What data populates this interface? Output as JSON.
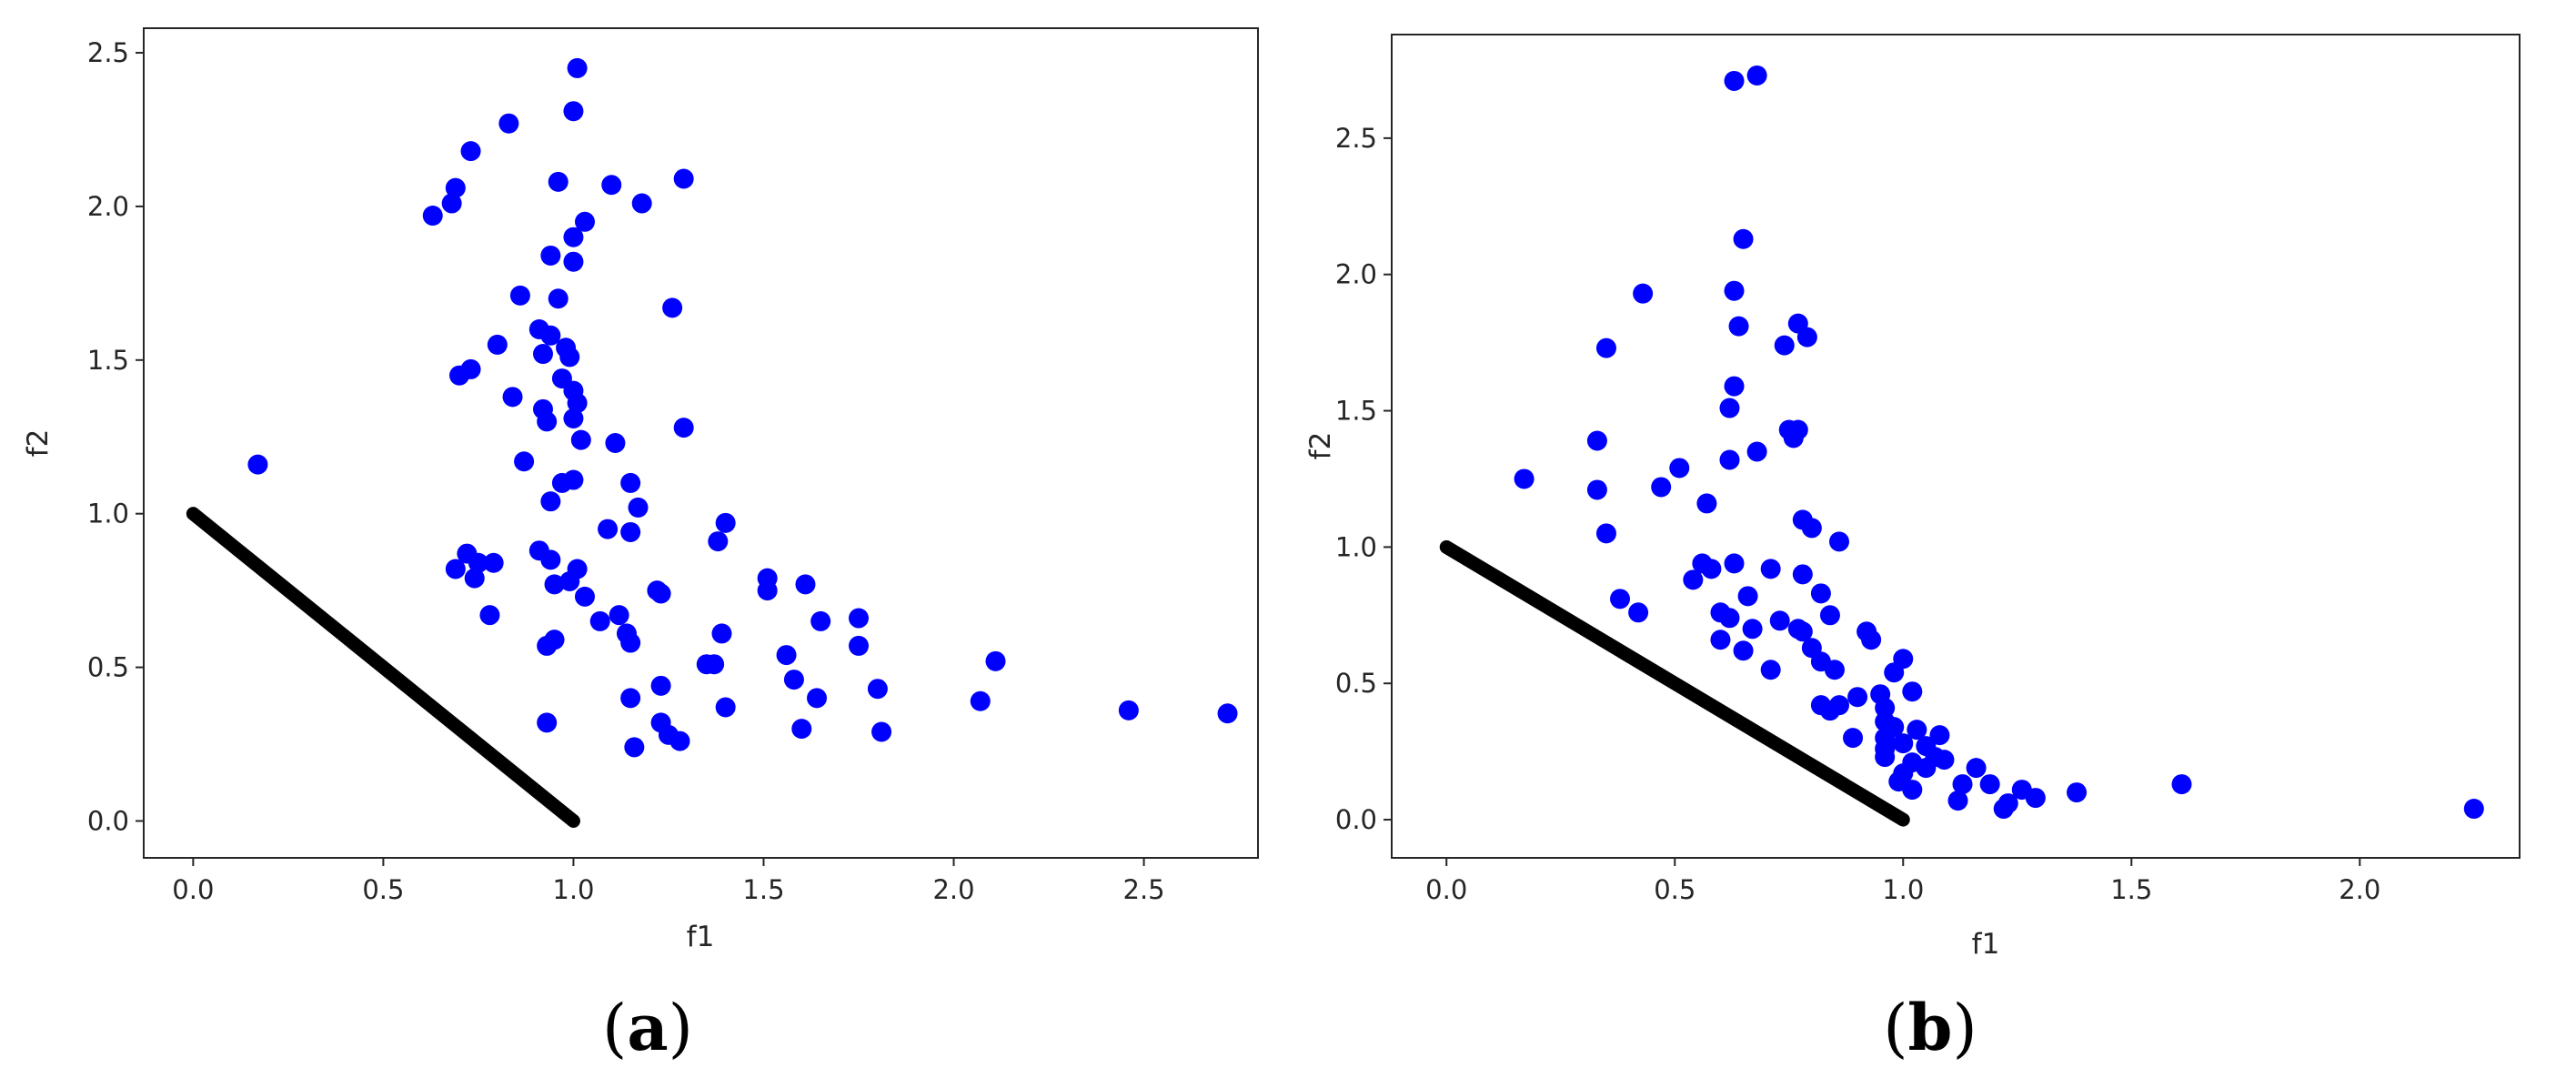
{
  "colors": {
    "points": "#0000ff",
    "line": "#000000",
    "axes": "#262626"
  },
  "chart_data": [
    {
      "type": "scatter",
      "panel_label": {
        "open": "(",
        "letter": "a",
        "close": ")"
      },
      "xlabel": "f1",
      "ylabel": "f2",
      "xlim": [
        -0.13,
        2.8
      ],
      "ylim": [
        -0.12,
        2.58
      ],
      "xticks": [
        "0.0",
        "0.5",
        "1.0",
        "1.5",
        "2.0",
        "2.5"
      ],
      "yticks": [
        "0.0",
        "0.5",
        "1.0",
        "1.5",
        "2.0",
        "2.5"
      ],
      "line": {
        "name": "",
        "x": [
          0.0,
          1.0
        ],
        "y": [
          1.0,
          0.0
        ]
      },
      "points": [
        [
          0.17,
          1.16
        ],
        [
          0.63,
          1.97
        ],
        [
          0.68,
          2.01
        ],
        [
          0.69,
          2.06
        ],
        [
          0.73,
          2.18
        ],
        [
          0.83,
          2.27
        ],
        [
          1.01,
          2.45
        ],
        [
          1.0,
          2.31
        ],
        [
          1.1,
          2.07
        ],
        [
          1.18,
          2.01
        ],
        [
          1.29,
          2.09
        ],
        [
          0.96,
          2.08
        ],
        [
          1.03,
          1.95
        ],
        [
          1.0,
          1.9
        ],
        [
          0.94,
          1.84
        ],
        [
          1.0,
          1.82
        ],
        [
          0.86,
          1.71
        ],
        [
          0.96,
          1.7
        ],
        [
          1.26,
          1.67
        ],
        [
          0.91,
          1.6
        ],
        [
          0.94,
          1.58
        ],
        [
          0.98,
          1.54
        ],
        [
          0.8,
          1.55
        ],
        [
          0.92,
          1.52
        ],
        [
          0.99,
          1.51
        ],
        [
          0.73,
          1.47
        ],
        [
          0.7,
          1.45
        ],
        [
          0.97,
          1.44
        ],
        [
          1.0,
          1.4
        ],
        [
          0.84,
          1.38
        ],
        [
          1.01,
          1.36
        ],
        [
          0.92,
          1.34
        ],
        [
          1.0,
          1.31
        ],
        [
          0.93,
          1.3
        ],
        [
          1.29,
          1.28
        ],
        [
          1.02,
          1.24
        ],
        [
          1.11,
          1.23
        ],
        [
          0.87,
          1.17
        ],
        [
          0.97,
          1.1
        ],
        [
          1.0,
          1.11
        ],
        [
          1.15,
          1.1
        ],
        [
          0.94,
          1.04
        ],
        [
          1.17,
          1.02
        ],
        [
          1.4,
          0.97
        ],
        [
          1.09,
          0.95
        ],
        [
          1.15,
          0.94
        ],
        [
          1.38,
          0.91
        ],
        [
          0.91,
          0.88
        ],
        [
          0.72,
          0.87
        ],
        [
          0.75,
          0.84
        ],
        [
          0.79,
          0.84
        ],
        [
          0.94,
          0.85
        ],
        [
          0.69,
          0.82
        ],
        [
          1.01,
          0.82
        ],
        [
          0.74,
          0.79
        ],
        [
          0.95,
          0.77
        ],
        [
          0.99,
          0.78
        ],
        [
          1.51,
          0.79
        ],
        [
          1.51,
          0.75
        ],
        [
          1.61,
          0.77
        ],
        [
          1.22,
          0.75
        ],
        [
          1.03,
          0.73
        ],
        [
          1.23,
          0.74
        ],
        [
          0.78,
          0.67
        ],
        [
          1.12,
          0.67
        ],
        [
          1.07,
          0.65
        ],
        [
          1.65,
          0.65
        ],
        [
          1.75,
          0.66
        ],
        [
          1.14,
          0.61
        ],
        [
          1.39,
          0.61
        ],
        [
          1.15,
          0.58
        ],
        [
          1.75,
          0.57
        ],
        [
          0.95,
          0.59
        ],
        [
          0.93,
          0.57
        ],
        [
          1.56,
          0.54
        ],
        [
          2.11,
          0.52
        ],
        [
          1.35,
          0.51
        ],
        [
          1.37,
          0.51
        ],
        [
          1.58,
          0.46
        ],
        [
          1.23,
          0.44
        ],
        [
          1.8,
          0.43
        ],
        [
          1.15,
          0.4
        ],
        [
          1.64,
          0.4
        ],
        [
          2.07,
          0.39
        ],
        [
          1.4,
          0.37
        ],
        [
          2.46,
          0.36
        ],
        [
          2.72,
          0.35
        ],
        [
          0.93,
          0.32
        ],
        [
          1.23,
          0.32
        ],
        [
          1.6,
          0.3
        ],
        [
          1.81,
          0.29
        ],
        [
          1.25,
          0.28
        ],
        [
          1.28,
          0.26
        ],
        [
          1.16,
          0.24
        ]
      ]
    },
    {
      "type": "scatter",
      "panel_label": {
        "open": "(",
        "letter": "b",
        "close": ")"
      },
      "xlabel": "f1",
      "ylabel": "f2",
      "xlim": [
        -0.12,
        2.35
      ],
      "ylim": [
        -0.14,
        2.88
      ],
      "xticks": [
        "0.0",
        "0.5",
        "1.0",
        "1.5",
        "2.0"
      ],
      "yticks": [
        "0.0",
        "0.5",
        "1.0",
        "1.5",
        "2.0",
        "2.5"
      ],
      "line": {
        "name": "",
        "x": [
          0.0,
          1.0
        ],
        "y": [
          1.0,
          0.0
        ]
      },
      "points": [
        [
          0.63,
          2.71
        ],
        [
          0.68,
          2.73
        ],
        [
          0.65,
          2.13
        ],
        [
          0.43,
          1.93
        ],
        [
          0.63,
          1.94
        ],
        [
          0.64,
          1.81
        ],
        [
          0.77,
          1.82
        ],
        [
          0.79,
          1.77
        ],
        [
          0.74,
          1.74
        ],
        [
          0.35,
          1.73
        ],
        [
          0.62,
          1.51
        ],
        [
          0.63,
          1.59
        ],
        [
          0.75,
          1.43
        ],
        [
          0.77,
          1.43
        ],
        [
          0.76,
          1.4
        ],
        [
          0.33,
          1.39
        ],
        [
          0.68,
          1.35
        ],
        [
          0.62,
          1.32
        ],
        [
          0.51,
          1.29
        ],
        [
          0.17,
          1.25
        ],
        [
          0.47,
          1.22
        ],
        [
          0.33,
          1.21
        ],
        [
          0.57,
          1.16
        ],
        [
          0.78,
          1.1
        ],
        [
          0.8,
          1.07
        ],
        [
          0.35,
          1.05
        ],
        [
          0.86,
          1.02
        ],
        [
          0.63,
          0.94
        ],
        [
          0.56,
          0.94
        ],
        [
          0.58,
          0.92
        ],
        [
          0.71,
          0.92
        ],
        [
          0.54,
          0.88
        ],
        [
          0.78,
          0.9
        ],
        [
          0.82,
          0.83
        ],
        [
          0.66,
          0.82
        ],
        [
          0.38,
          0.81
        ],
        [
          0.42,
          0.76
        ],
        [
          0.6,
          0.76
        ],
        [
          0.62,
          0.74
        ],
        [
          0.73,
          0.73
        ],
        [
          0.84,
          0.75
        ],
        [
          0.77,
          0.7
        ],
        [
          0.67,
          0.7
        ],
        [
          0.78,
          0.69
        ],
        [
          0.6,
          0.66
        ],
        [
          0.92,
          0.69
        ],
        [
          0.93,
          0.66
        ],
        [
          0.8,
          0.63
        ],
        [
          0.65,
          0.62
        ],
        [
          1.0,
          0.59
        ],
        [
          0.82,
          0.58
        ],
        [
          0.71,
          0.55
        ],
        [
          0.85,
          0.55
        ],
        [
          0.98,
          0.54
        ],
        [
          0.95,
          0.46
        ],
        [
          1.02,
          0.47
        ],
        [
          0.82,
          0.42
        ],
        [
          0.84,
          0.4
        ],
        [
          0.86,
          0.42
        ],
        [
          0.9,
          0.45
        ],
        [
          0.96,
          0.41
        ],
        [
          0.96,
          0.36
        ],
        [
          0.98,
          0.34
        ],
        [
          1.03,
          0.33
        ],
        [
          1.08,
          0.31
        ],
        [
          0.96,
          0.3
        ],
        [
          0.89,
          0.3
        ],
        [
          1.0,
          0.28
        ],
        [
          0.96,
          0.26
        ],
        [
          1.05,
          0.27
        ],
        [
          1.07,
          0.23
        ],
        [
          0.96,
          0.23
        ],
        [
          1.02,
          0.21
        ],
        [
          1.09,
          0.22
        ],
        [
          1.05,
          0.19
        ],
        [
          1.16,
          0.19
        ],
        [
          1.0,
          0.17
        ],
        [
          0.99,
          0.14
        ],
        [
          1.13,
          0.13
        ],
        [
          1.19,
          0.13
        ],
        [
          1.02,
          0.11
        ],
        [
          1.26,
          0.11
        ],
        [
          1.38,
          0.1
        ],
        [
          1.61,
          0.13
        ],
        [
          1.12,
          0.07
        ],
        [
          1.29,
          0.08
        ],
        [
          1.23,
          0.06
        ],
        [
          1.22,
          0.04
        ],
        [
          2.25,
          0.04
        ]
      ]
    }
  ]
}
